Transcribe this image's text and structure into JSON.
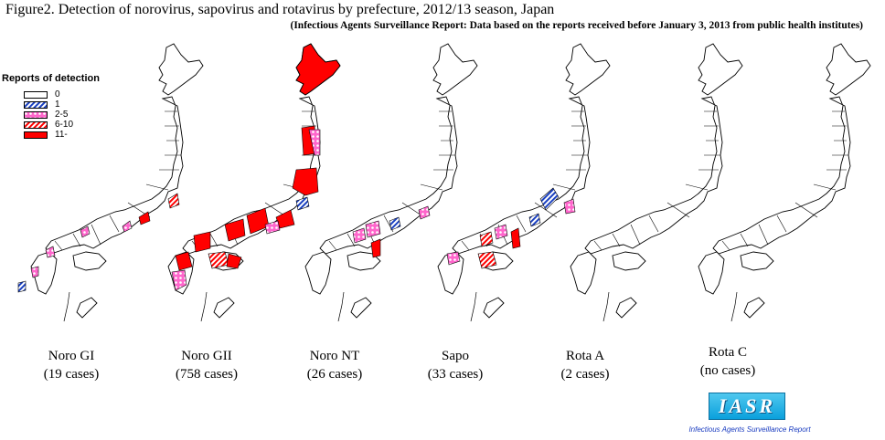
{
  "title": "Figure2. Detection of norovirus, sapovirus and rotavirus by prefecture, 2012/13 season, Japan",
  "subtitle": "(Infectious Agents Surveillance Report: Data based on the reports received before January 3, 2013 from public health institutes)",
  "legend": {
    "title": "Reports of detection",
    "items": [
      {
        "label": "0",
        "fill": "empty"
      },
      {
        "label": "1",
        "fill": "blue-hatch"
      },
      {
        "label": "2-5",
        "fill": "pink-dots"
      },
      {
        "label": "6-10",
        "fill": "red-hatch"
      },
      {
        "label": "11-",
        "fill": "red"
      }
    ]
  },
  "colors": {
    "red": "#ff0000",
    "pink": "#ff66cc",
    "blue": "#1a40c0",
    "outline": "#000000"
  },
  "maps": [
    {
      "name": "Noro GI",
      "cases": "(19 cases)"
    },
    {
      "name": "Noro GII",
      "cases": "(758 cases)"
    },
    {
      "name": "Noro NT",
      "cases": "(26 cases)"
    },
    {
      "name": "Sapo",
      "cases": "(33 cases)"
    },
    {
      "name": "Rota A",
      "cases": "(2 cases)"
    },
    {
      "name": "Rota C",
      "cases": "(no cases)"
    }
  ],
  "logo": {
    "text": "IASR",
    "subtext": "Infectious Agents Surveillance Report"
  }
}
